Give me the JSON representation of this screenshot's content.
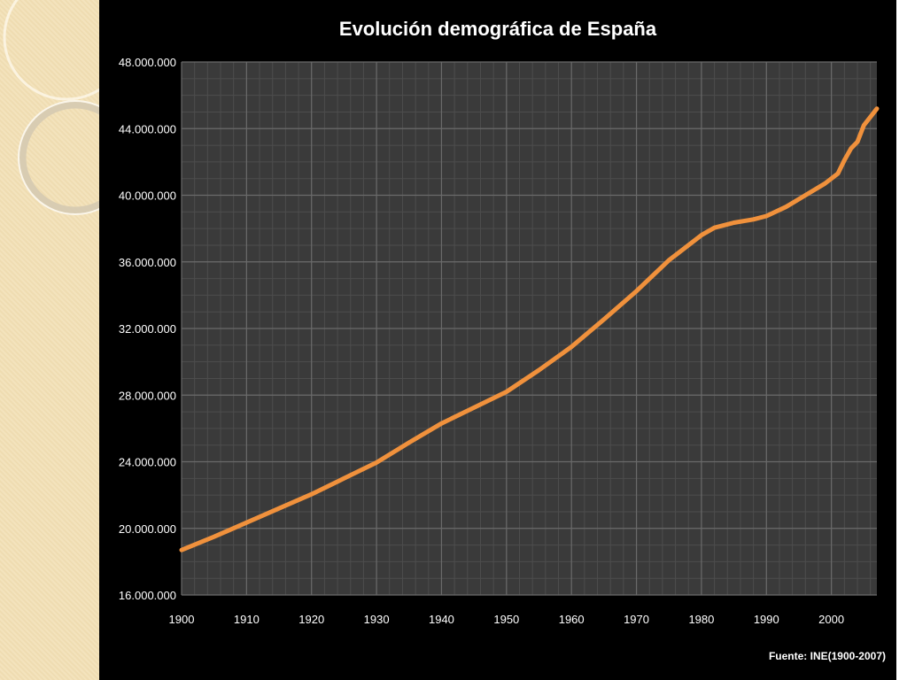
{
  "chart_data": {
    "type": "line",
    "title": "Evolución demográfica de España",
    "source": "Fuente: INE(1900-2007)",
    "xlabel": "",
    "ylabel": "",
    "xlim": [
      1900,
      2007
    ],
    "ylim": [
      16000000,
      48000000
    ],
    "x_ticks": [
      1900,
      1910,
      1920,
      1930,
      1940,
      1950,
      1960,
      1970,
      1980,
      1990,
      2000
    ],
    "y_ticks": [
      {
        "value": 16000000,
        "label": "16.000.000"
      },
      {
        "value": 20000000,
        "label": "20.000.000"
      },
      {
        "value": 24000000,
        "label": "24.000.000"
      },
      {
        "value": 28000000,
        "label": "28.000.000"
      },
      {
        "value": 32000000,
        "label": "32.000.000"
      },
      {
        "value": 36000000,
        "label": "36.000.000"
      },
      {
        "value": 40000000,
        "label": "40.000.000"
      },
      {
        "value": 44000000,
        "label": "44.000.000"
      },
      {
        "value": 48000000,
        "label": "48.000.000"
      }
    ],
    "grid": true,
    "legend": "none",
    "colors": {
      "line": "#f0913c",
      "plot_bg": "#3a3a3a",
      "grid": "#6a6a6a",
      "background": "#000000"
    },
    "series": [
      {
        "x": [
          1900,
          1905,
          1910,
          1915,
          1920,
          1925,
          1930,
          1935,
          1940,
          1945,
          1950,
          1955,
          1960,
          1965,
          1970,
          1975,
          1980,
          1982,
          1985,
          1988,
          1990,
          1993,
          1996,
          1999,
          2001,
          2002,
          2003,
          2004,
          2005,
          2006,
          2007
        ],
        "y": [
          18700000,
          19500000,
          20350000,
          21200000,
          22050000,
          23000000,
          23950000,
          25150000,
          26300000,
          27250000,
          28200000,
          29500000,
          30900000,
          32550000,
          34250000,
          36100000,
          37600000,
          38050000,
          38350000,
          38550000,
          38750000,
          39300000,
          40000000,
          40700000,
          41300000,
          42100000,
          42800000,
          43200000,
          44200000,
          44700000,
          45200000
        ]
      }
    ]
  }
}
